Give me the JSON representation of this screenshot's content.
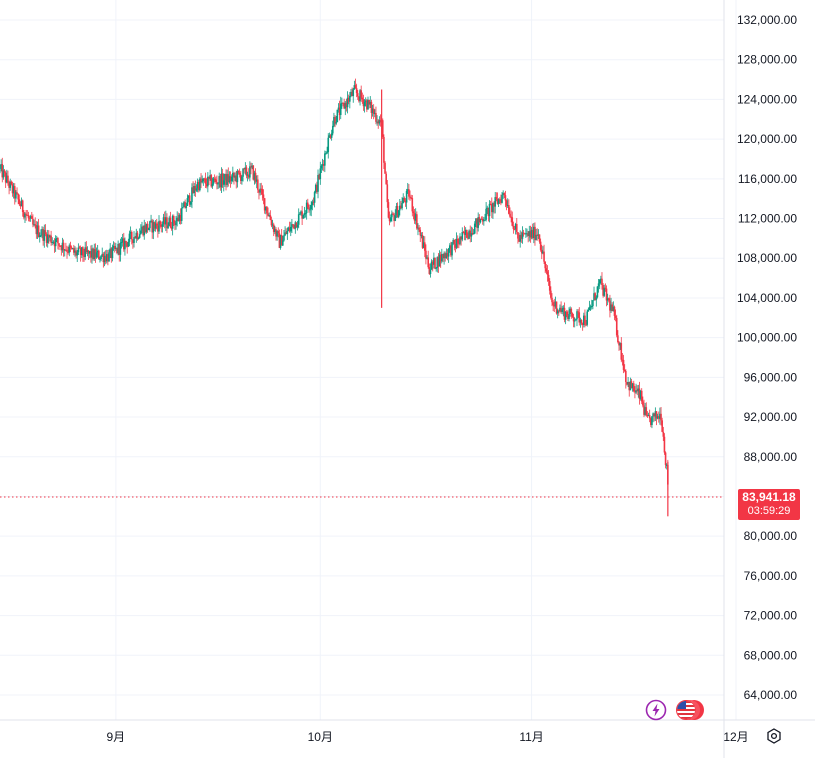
{
  "chart_data": {
    "type": "candlestick",
    "title": "",
    "xlabel": "",
    "ylabel": "",
    "ylim": [
      62000,
      133000
    ],
    "y_ticks": [
      "132,000.00",
      "128,000.00",
      "124,000.00",
      "120,000.00",
      "116,000.00",
      "112,000.00",
      "108,000.00",
      "104,000.00",
      "100,000.00",
      "96,000.00",
      "92,000.00",
      "88,000.00",
      "80,000.00",
      "76,000.00",
      "72,000.00",
      "68,000.00",
      "64,000.00"
    ],
    "y_tick_values": [
      132000,
      128000,
      124000,
      120000,
      116000,
      112000,
      108000,
      104000,
      100000,
      96000,
      92000,
      88000,
      80000,
      76000,
      72000,
      68000,
      64000
    ],
    "x_ticks": [
      "9月",
      "10月",
      "11月",
      "12月"
    ],
    "x_tick_dates": [
      "2025-09-01",
      "2025-10-01",
      "2025-11-01",
      "2025-12-01"
    ],
    "date_range": [
      "2025-08-15",
      "2025-12-01"
    ],
    "last_price": 83941.18,
    "last_price_label": "83,941.18",
    "countdown": "03:59:29",
    "grid": true,
    "price_line": "dotted",
    "colors": {
      "up": "#089981",
      "down": "#f23645",
      "grid": "#f0f3fa",
      "price_line": "#f23645"
    },
    "price_path_keypoints": [
      [
        "2025-08-15",
        117000
      ],
      [
        "2025-08-20",
        111000
      ],
      [
        "2025-08-26",
        108500
      ],
      [
        "2025-08-31",
        108200
      ],
      [
        "2025-09-05",
        111000
      ],
      [
        "2025-09-10",
        111800
      ],
      [
        "2025-09-13",
        115500
      ],
      [
        "2025-09-18",
        116000
      ],
      [
        "2025-09-21",
        116800
      ],
      [
        "2025-09-25",
        109600
      ],
      [
        "2025-09-30",
        114000
      ],
      [
        "2025-10-03",
        122000
      ],
      [
        "2025-10-06",
        124800
      ],
      [
        "2025-10-08",
        123500
      ],
      [
        "2025-10-10",
        121500
      ],
      [
        "2025-10-11",
        111500
      ],
      [
        "2025-10-14",
        114500
      ],
      [
        "2025-10-17",
        107000
      ],
      [
        "2025-10-21",
        109500
      ],
      [
        "2025-10-24",
        111500
      ],
      [
        "2025-10-28",
        114500
      ],
      [
        "2025-10-30",
        110000
      ],
      [
        "2025-11-02",
        110600
      ],
      [
        "2025-11-04",
        103500
      ],
      [
        "2025-11-06",
        102400
      ],
      [
        "2025-11-09",
        101800
      ],
      [
        "2025-11-11",
        105500
      ],
      [
        "2025-11-13",
        102500
      ],
      [
        "2025-11-15",
        95500
      ],
      [
        "2025-11-17",
        94000
      ],
      [
        "2025-11-18",
        91500
      ],
      [
        "2025-11-20",
        92300
      ],
      [
        "2025-11-21",
        85500
      ],
      [
        "2025-11-21",
        83941
      ]
    ],
    "extreme_wicks": [
      [
        "2025-10-10",
        125000,
        103000
      ],
      [
        "2025-11-21",
        87500,
        82000
      ]
    ]
  },
  "icons": {
    "flash": "lightning-icon",
    "flag": "us-flag-icon",
    "settings": "settings-icon"
  }
}
